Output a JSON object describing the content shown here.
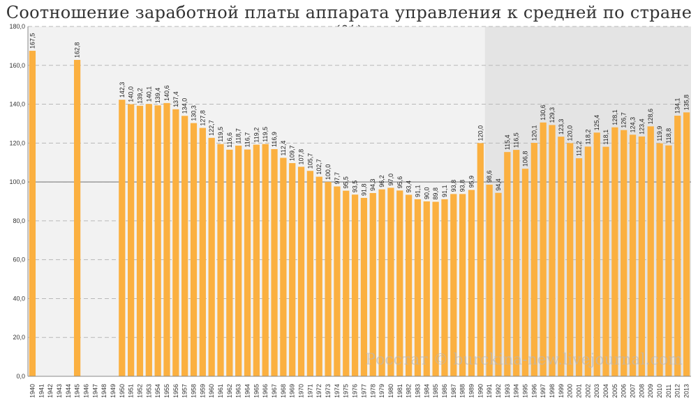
{
  "chart_data": {
    "type": "bar",
    "title": "Соотношение заработной платы аппарата управления к средней по стране (%)",
    "xlabel": "",
    "ylabel": "",
    "ylim": [
      0,
      180
    ],
    "yticks": [
      "0,0",
      "20,0",
      "40,0",
      "60,0",
      "80,0",
      "100,0",
      "120,0",
      "140,0",
      "160,0",
      "180,0"
    ],
    "grid": true,
    "reference_line": 100,
    "shaded_from_category": "1991",
    "categories": [
      "1940",
      "1941",
      "1942",
      "1943",
      "1944",
      "1945",
      "1946",
      "1947",
      "1948",
      "1949",
      "1950",
      "1951",
      "1952",
      "1953",
      "1954",
      "1955",
      "1956",
      "1957",
      "1958",
      "1959",
      "1960",
      "1961",
      "1962",
      "1963",
      "1964",
      "1965",
      "1966",
      "1967",
      "1968",
      "1969",
      "1970",
      "1971",
      "1972",
      "1973",
      "1974",
      "1975",
      "1976",
      "1977",
      "1978",
      "1979",
      "1980",
      "1981",
      "1982",
      "1983",
      "1984",
      "1985",
      "1986",
      "1987",
      "1988",
      "1989",
      "1990",
      "1991",
      "1992",
      "1993",
      "1994",
      "1995",
      "1996",
      "1997",
      "1998",
      "1999",
      "2000",
      "2001",
      "2002",
      "2003",
      "2004",
      "2005",
      "2006",
      "2007",
      "2008",
      "2009",
      "2010",
      "2011",
      "2012",
      "2013"
    ],
    "values": [
      167.5,
      null,
      null,
      null,
      null,
      162.8,
      null,
      null,
      null,
      null,
      142.3,
      140.0,
      139.2,
      140.1,
      139.4,
      140.6,
      137.4,
      134.0,
      130.3,
      127.8,
      122.7,
      119.5,
      116.6,
      118.7,
      116.7,
      119.2,
      119.5,
      116.9,
      112.4,
      109.7,
      107.8,
      105.7,
      102.7,
      100.0,
      97.7,
      95.5,
      93.5,
      91.8,
      94.3,
      96.2,
      97.0,
      95.6,
      93.4,
      91.1,
      90.0,
      89.8,
      91.1,
      93.8,
      93.8,
      95.9,
      120.0,
      98.6,
      94.4,
      115.4,
      116.5,
      106.8,
      120.1,
      130.6,
      129.3,
      123.3,
      120.0,
      112.2,
      118.2,
      125.4,
      118.1,
      128.1,
      126.7,
      124.3,
      123.4,
      128.6,
      119.9,
      118.8,
      134.1,
      135.8
    ],
    "data_labels": [
      "167,5",
      "",
      "",
      "",
      "",
      "162,8",
      "",
      "",
      "",
      "",
      "142,3",
      "140,0",
      "139,2",
      "140,1",
      "139,4",
      "140,6",
      "137,4",
      "134,0",
      "130,3",
      "127,8",
      "122,7",
      "119,5",
      "116,6",
      "118,7",
      "116,7",
      "119,2",
      "119,5",
      "116,9",
      "112,4",
      "109,7",
      "107,8",
      "105,7",
      "102,7",
      "100,0",
      "97,7",
      "95,5",
      "93,5",
      "91,8",
      "94,3",
      "96,2",
      "97,0",
      "95,6",
      "93,4",
      "91,1",
      "90,0",
      "89,8",
      "91,1",
      "93,8",
      "93,8",
      "95,9",
      "120,0",
      "98,6",
      "94,4",
      "115,4",
      "116,5",
      "106,8",
      "120,1",
      "130,6",
      "129,3",
      "123,3",
      "120,0",
      "112,2",
      "118,2",
      "125,4",
      "118,1",
      "128,1",
      "126,7",
      "124,3",
      "123,4",
      "128,6",
      "119,9",
      "118,8",
      "134,1",
      "135,8"
    ],
    "bar_color": "#FBB040",
    "watermark": "Росстат © burckina-new.livejournal.com"
  }
}
